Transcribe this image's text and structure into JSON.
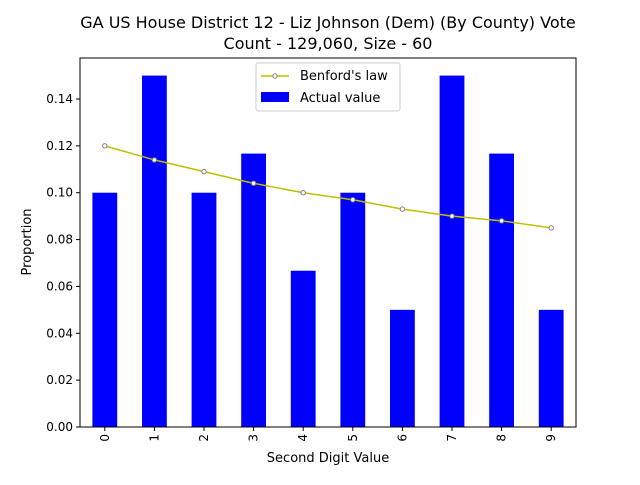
{
  "chart_data": {
    "type": "bar",
    "title_line1": "GA US House District 12 - Liz Johnson (Dem) (By County) Vote",
    "title_line2": "Count - 129,060, Size - 60",
    "xlabel": "Second Digit Value",
    "ylabel": "Proportion",
    "categories": [
      "0",
      "1",
      "2",
      "3",
      "4",
      "5",
      "6",
      "7",
      "8",
      "9"
    ],
    "ylim": [
      0,
      0.1575
    ],
    "yticks": [
      "0.00",
      "0.02",
      "0.04",
      "0.06",
      "0.08",
      "0.10",
      "0.12",
      "0.14"
    ],
    "series": [
      {
        "name": "Actual value",
        "kind": "bar",
        "color": "#0000ff",
        "values": [
          0.1,
          0.15,
          0.1,
          0.1167,
          0.0667,
          0.1,
          0.05,
          0.15,
          0.1167,
          0.05
        ]
      },
      {
        "name": "Benford's law",
        "kind": "line",
        "color": "#bfbf00",
        "marker_color": "#808080",
        "values": [
          0.12,
          0.114,
          0.109,
          0.104,
          0.1,
          0.097,
          0.093,
          0.09,
          0.088,
          0.085
        ]
      }
    ],
    "legend": {
      "position": "top-center"
    },
    "grid": false
  }
}
